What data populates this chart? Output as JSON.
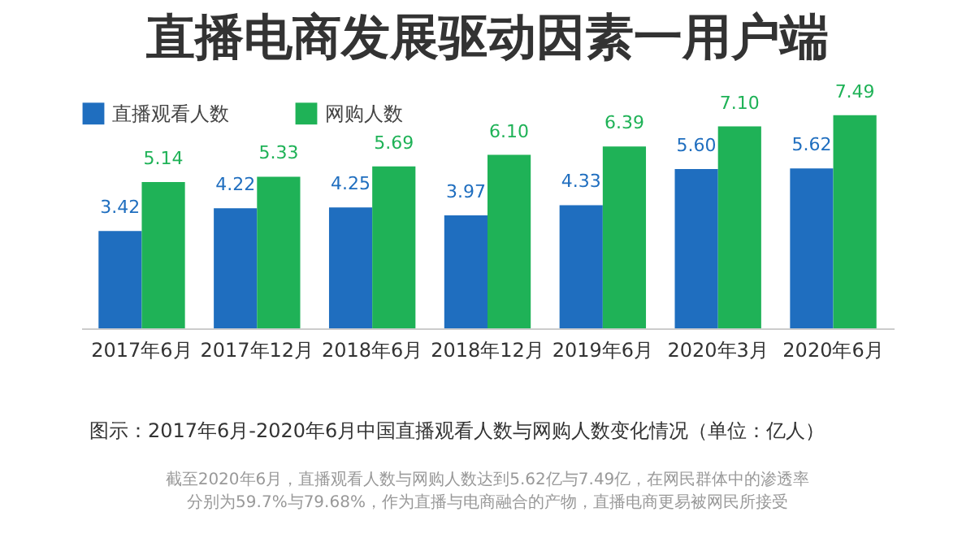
{
  "chart_data": {
    "type": "bar",
    "title": "直播电商发展驱动因素一用户端",
    "categories": [
      "2017年6月",
      "2017年12月",
      "2018年6月",
      "2018年12月",
      "2019年6月",
      "2020年3月",
      "2020年6月"
    ],
    "series": [
      {
        "name": "直播观看人数",
        "color": "#1f6ebf",
        "values": [
          3.42,
          4.22,
          4.25,
          3.97,
          4.33,
          5.6,
          5.62
        ],
        "value_labels": [
          "3.42",
          "4.22",
          "4.25",
          "3.97",
          "4.33",
          "5.60",
          "5.62"
        ]
      },
      {
        "name": "网购人数",
        "color": "#1fb257",
        "values": [
          5.14,
          5.33,
          5.69,
          6.1,
          6.39,
          7.1,
          7.49
        ],
        "value_labels": [
          "5.14",
          "5.33",
          "5.69",
          "6.10",
          "6.39",
          "7.10",
          "7.49"
        ]
      }
    ],
    "legend": "top left",
    "grid": false,
    "annotations": [
      "图示：2017年6月-2020年6月中国直播观看人数与网购人数变化情况（单位：亿人）",
      "截至2020年6月，直播观看人数与网购人数达到5.62亿与7.49亿，在网民群体中的渗透率分别为59.7%与79.68%，作为直播与电商融合的产物，直播电商更易被网民所接受"
    ]
  }
}
